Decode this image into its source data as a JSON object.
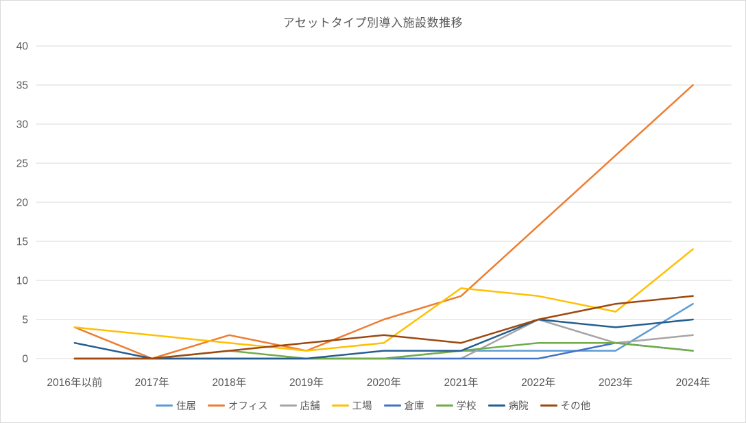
{
  "chart_data": {
    "type": "line",
    "title": "アセットタイプ別導入施設数推移",
    "categories": [
      "2016年以前",
      "2017年",
      "2018年",
      "2019年",
      "2020年",
      "2021年",
      "2022年",
      "2023年",
      "2024年"
    ],
    "series": [
      {
        "name": "住居",
        "color": "#5B9BD5",
        "values": [
          0,
          0,
          0,
          0,
          0,
          1,
          1,
          1,
          7
        ]
      },
      {
        "name": "オフィス",
        "color": "#ED7D31",
        "values": [
          4,
          0,
          3,
          1,
          5,
          8,
          17,
          26,
          35
        ]
      },
      {
        "name": "店舗",
        "color": "#A5A5A5",
        "values": [
          0,
          0,
          0,
          0,
          0,
          0,
          5,
          2,
          3
        ]
      },
      {
        "name": "工場",
        "color": "#FFC000",
        "values": [
          4,
          3,
          2,
          1,
          2,
          9,
          8,
          6,
          14
        ]
      },
      {
        "name": "倉庫",
        "color": "#4472C4",
        "values": [
          0,
          0,
          0,
          0,
          0,
          0,
          0,
          2,
          1
        ]
      },
      {
        "name": "学校",
        "color": "#70AD47",
        "values": [
          0,
          0,
          1,
          0,
          0,
          1,
          2,
          2,
          1
        ]
      },
      {
        "name": "病院",
        "color": "#255E91",
        "values": [
          2,
          0,
          0,
          0,
          1,
          1,
          5,
          4,
          5
        ]
      },
      {
        "name": "その他",
        "color": "#9E480E",
        "values": [
          0,
          0,
          1,
          2,
          3,
          2,
          5,
          7,
          8
        ]
      }
    ],
    "y_ticks": [
      0,
      5,
      10,
      15,
      20,
      25,
      30,
      35,
      40
    ],
    "ylim": [
      0,
      40
    ],
    "grid": true,
    "legend_position": "bottom",
    "text_color": "#595959",
    "gridline_color": "#d9d9d9"
  }
}
